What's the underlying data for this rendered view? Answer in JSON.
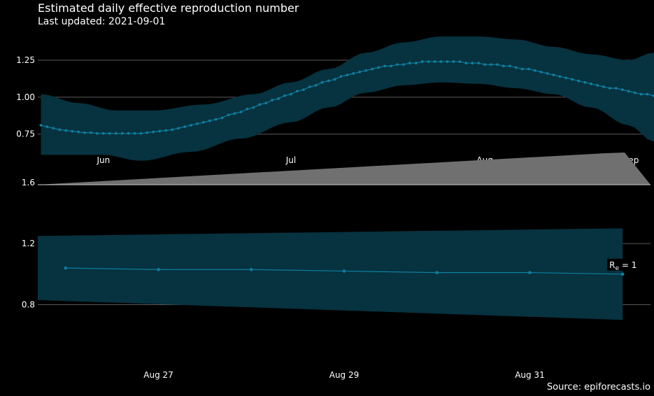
{
  "title": "Estimated daily effective reproduction number",
  "subtitle": "Last updated: 2021-09-01",
  "source": "Source: epiforecasts.io",
  "colors": {
    "background": "#000000",
    "band": "#07323f",
    "line": "#0e7ea0",
    "grid": "#5a5a5a",
    "brush": "#707070"
  },
  "chart_data": [
    {
      "type": "line",
      "role": "overview",
      "ylim": [
        0.64,
        1.42
      ],
      "yticks": [
        0.75,
        1.0,
        1.25
      ],
      "ytick_labels": [
        "0.75",
        "1.00",
        "1.25"
      ],
      "xlim_days": [
        -0.5,
        97.5
      ],
      "xticks": [
        {
          "day": 10,
          "label": "Jun"
        },
        {
          "day": 40,
          "label": "Jul"
        },
        {
          "day": 71,
          "label": "Aug"
        },
        {
          "day": 102,
          "label": "Sep"
        }
      ],
      "start_date": "2021-05-22",
      "end_date": "2021-09-01",
      "mean": [
        0.81,
        0.8,
        0.79,
        0.78,
        0.775,
        0.77,
        0.765,
        0.76,
        0.76,
        0.755,
        0.755,
        0.755,
        0.755,
        0.755,
        0.755,
        0.755,
        0.755,
        0.76,
        0.765,
        0.77,
        0.775,
        0.78,
        0.79,
        0.8,
        0.81,
        0.82,
        0.83,
        0.84,
        0.85,
        0.86,
        0.88,
        0.89,
        0.9,
        0.92,
        0.93,
        0.95,
        0.96,
        0.98,
        0.99,
        1.01,
        1.02,
        1.04,
        1.05,
        1.07,
        1.08,
        1.1,
        1.11,
        1.12,
        1.14,
        1.15,
        1.16,
        1.17,
        1.18,
        1.19,
        1.2,
        1.21,
        1.21,
        1.22,
        1.22,
        1.23,
        1.23,
        1.24,
        1.24,
        1.24,
        1.24,
        1.24,
        1.24,
        1.24,
        1.23,
        1.23,
        1.23,
        1.22,
        1.22,
        1.22,
        1.21,
        1.21,
        1.2,
        1.19,
        1.19,
        1.18,
        1.17,
        1.16,
        1.15,
        1.14,
        1.13,
        1.12,
        1.11,
        1.1,
        1.09,
        1.08,
        1.07,
        1.06,
        1.06,
        1.05,
        1.04,
        1.03,
        1.02,
        1.02,
        1.01,
        1.0,
        1.0
      ],
      "upper_anchors": [
        [
          0,
          1.02
        ],
        [
          6,
          0.96
        ],
        [
          12,
          0.91
        ],
        [
          18,
          0.91
        ],
        [
          26,
          0.95
        ],
        [
          34,
          1.02
        ],
        [
          40,
          1.1
        ],
        [
          46,
          1.19
        ],
        [
          52,
          1.3
        ],
        [
          58,
          1.37
        ],
        [
          64,
          1.41
        ],
        [
          70,
          1.41
        ],
        [
          76,
          1.39
        ],
        [
          82,
          1.34
        ],
        [
          88,
          1.29
        ],
        [
          94,
          1.25
        ],
        [
          98,
          1.3
        ]
      ],
      "lower_anchors": [
        [
          0,
          0.61
        ],
        [
          10,
          0.61
        ],
        [
          16,
          0.57
        ],
        [
          24,
          0.63
        ],
        [
          32,
          0.72
        ],
        [
          40,
          0.83
        ],
        [
          46,
          0.93
        ],
        [
          52,
          1.03
        ],
        [
          58,
          1.08
        ],
        [
          64,
          1.1
        ],
        [
          70,
          1.09
        ],
        [
          76,
          1.06
        ],
        [
          82,
          1.02
        ],
        [
          88,
          0.93
        ],
        [
          94,
          0.81
        ],
        [
          98,
          0.7
        ]
      ]
    },
    {
      "type": "line",
      "role": "detail",
      "ylim": [
        0.55,
        1.65
      ],
      "yticks": [
        0.8,
        1.2,
        1.6
      ],
      "ytick_labels": [
        "0.8",
        "1.2",
        "1.6"
      ],
      "xlim_days": [
        -0.3,
        6.3
      ],
      "xticks": [
        {
          "day": 1,
          "label": "Aug 27"
        },
        {
          "day": 3,
          "label": "Aug 29"
        },
        {
          "day": 5,
          "label": "Aug 31"
        }
      ],
      "points": [
        {
          "date": "2021-08-26",
          "value": 1.04
        },
        {
          "date": "2021-08-27",
          "value": 1.03
        },
        {
          "date": "2021-08-28",
          "value": 1.03
        },
        {
          "date": "2021-08-29",
          "value": 1.02
        },
        {
          "date": "2021-08-30",
          "value": 1.01
        },
        {
          "date": "2021-08-31",
          "value": 1.01
        },
        {
          "date": "2021-09-01",
          "value": 1.0
        }
      ],
      "upper_start": 1.25,
      "upper_end": 1.3,
      "lower_start": 0.83,
      "lower_end": 0.7,
      "annotation": {
        "prefix": "R",
        "subscript": "e",
        "suffix": " = 1"
      }
    }
  ]
}
